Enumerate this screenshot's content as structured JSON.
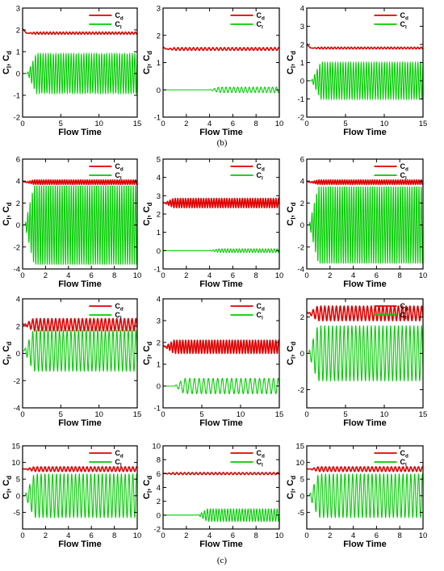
{
  "figure": {
    "caption_b": "(b)",
    "caption_c": "(c)",
    "colors": {
      "cd": "#e00000",
      "cl": "#00cc00"
    },
    "legend_cd_main": "C",
    "legend_cd_sub": "d",
    "legend_cl_main": "C",
    "legend_cl_sub": "l",
    "ylabel_main": "C",
    "ylabel_sub1": "l",
    "ylabel_mid": ", C",
    "ylabel_sub2": "d"
  },
  "chart_data": [
    {
      "type": "line",
      "xlabel": "Flow Time",
      "xlim": [
        0,
        15
      ],
      "ylim": [
        -2,
        3
      ],
      "xticks": [
        0,
        5,
        10,
        15
      ],
      "yticks": [
        -2,
        -1,
        0,
        1,
        2,
        3
      ],
      "series": [
        {
          "name": "Cd",
          "mean": 1.85,
          "amplitude": 0.05,
          "cycles": 35,
          "onset": 0.5
        },
        {
          "name": "Cl",
          "mean": 0.0,
          "amplitude": 0.9,
          "cycles": 45,
          "onset": 0.6
        }
      ]
    },
    {
      "type": "line",
      "xlabel": "Flow Time",
      "xlim": [
        0,
        10
      ],
      "ylim": [
        -1,
        3
      ],
      "xticks": [
        0,
        2,
        4,
        6,
        8,
        10
      ],
      "yticks": [
        -1,
        0,
        1,
        2,
        3
      ],
      "series": [
        {
          "name": "Cd",
          "mean": 1.5,
          "amplitude": 0.05,
          "cycles": 30,
          "onset": 0.2
        },
        {
          "name": "Cl",
          "mean": 0.0,
          "amplitude": 0.1,
          "cycles": 30,
          "onset": 4.0
        }
      ]
    },
    {
      "type": "line",
      "xlabel": "Flow Time",
      "xlim": [
        0,
        15
      ],
      "ylim": [
        -2,
        4
      ],
      "xticks": [
        0,
        5,
        10,
        15
      ],
      "yticks": [
        -2,
        -1,
        0,
        1,
        2,
        3,
        4
      ],
      "series": [
        {
          "name": "Cd",
          "mean": 1.8,
          "amplitude": 0.05,
          "cycles": 35,
          "onset": 0.5
        },
        {
          "name": "Cl",
          "mean": 0.0,
          "amplitude": 1.0,
          "cycles": 45,
          "onset": 0.6
        }
      ]
    },
    {
      "type": "line",
      "xlabel": "Flow Time",
      "xlim": [
        0,
        10
      ],
      "ylim": [
        -4,
        6
      ],
      "xticks": [
        0,
        2,
        4,
        6,
        8,
        10
      ],
      "yticks": [
        -4,
        -2,
        0,
        2,
        4,
        6
      ],
      "series": [
        {
          "name": "Cd",
          "mean": 3.9,
          "amplitude": 0.2,
          "cycles": 50,
          "onset": 0.2
        },
        {
          "name": "Cl",
          "mean": 0.0,
          "amplitude": 3.6,
          "cycles": 50,
          "onset": 0.2
        }
      ]
    },
    {
      "type": "line",
      "xlabel": "Flow Time",
      "xlim": [
        0,
        10
      ],
      "ylim": [
        -1,
        5
      ],
      "xticks": [
        0,
        2,
        4,
        6,
        8,
        10
      ],
      "yticks": [
        -1,
        0,
        1,
        2,
        3,
        4,
        5
      ],
      "series": [
        {
          "name": "Cd",
          "mean": 2.6,
          "amplitude": 0.25,
          "cycles": 45,
          "onset": 0.1
        },
        {
          "name": "Cl",
          "mean": 0.0,
          "amplitude": 0.1,
          "cycles": 40,
          "onset": 4.0
        }
      ]
    },
    {
      "type": "line",
      "xlabel": "Flow Time",
      "xlim": [
        0,
        10
      ],
      "ylim": [
        -4,
        6
      ],
      "xticks": [
        0,
        2,
        4,
        6,
        8,
        10
      ],
      "yticks": [
        -4,
        -2,
        0,
        2,
        4,
        6
      ],
      "series": [
        {
          "name": "Cd",
          "mean": 3.9,
          "amplitude": 0.2,
          "cycles": 50,
          "onset": 0.2
        },
        {
          "name": "Cl",
          "mean": 0.0,
          "amplitude": 3.5,
          "cycles": 50,
          "onset": 0.2
        }
      ]
    },
    {
      "type": "line",
      "xlabel": "Flow Time",
      "xlim": [
        0,
        15
      ],
      "ylim": [
        -4,
        4
      ],
      "xticks": [
        0,
        5,
        10,
        15
      ],
      "yticks": [
        -4,
        -2,
        0,
        2,
        4
      ],
      "series": [
        {
          "name": "Cd",
          "mean": 2.1,
          "amplitude": 0.45,
          "cycles": 30,
          "onset": 0.2
        },
        {
          "name": "Cl",
          "mean": 0.2,
          "amplitude": 1.5,
          "cycles": 30,
          "onset": 0.2
        }
      ]
    },
    {
      "type": "line",
      "xlabel": "Flow Time",
      "xlim": [
        0,
        15
      ],
      "ylim": [
        -1,
        4
      ],
      "xticks": [
        0,
        5,
        10,
        15
      ],
      "yticks": [
        -1,
        0,
        1,
        2,
        3,
        4
      ],
      "series": [
        {
          "name": "Cd",
          "mean": 1.8,
          "amplitude": 0.3,
          "cycles": 40,
          "onset": 0.2
        },
        {
          "name": "Cl",
          "mean": 0.0,
          "amplitude": 0.35,
          "cycles": 25,
          "onset": 1.5
        }
      ]
    },
    {
      "type": "line",
      "xlabel": "Flow Time",
      "xlim": [
        0,
        15
      ],
      "ylim": [
        -3,
        3
      ],
      "xticks": [
        0,
        5,
        10,
        15
      ],
      "yticks": [
        -2,
        0,
        2
      ],
      "series": [
        {
          "name": "Cd",
          "mean": 2.2,
          "amplitude": 0.4,
          "cycles": 30,
          "onset": 0.2
        },
        {
          "name": "Cl",
          "mean": 0.0,
          "amplitude": 1.5,
          "cycles": 30,
          "onset": 0.2
        }
      ]
    },
    {
      "type": "line",
      "xlabel": "Flow Time",
      "xlim": [
        0,
        10
      ],
      "ylim": [
        -10,
        15
      ],
      "xticks": [
        0,
        2,
        4,
        6,
        8,
        10
      ],
      "yticks": [
        -5,
        0,
        5,
        10,
        15
      ],
      "series": [
        {
          "name": "Cd",
          "mean": 8.0,
          "amplitude": 0.7,
          "cycles": 30,
          "onset": 0.2
        },
        {
          "name": "Cl",
          "mean": 0.0,
          "amplitude": 6.5,
          "cycles": 30,
          "onset": 0.2
        }
      ]
    },
    {
      "type": "line",
      "xlabel": "Flow Time",
      "xlim": [
        0,
        10
      ],
      "ylim": [
        -2,
        10
      ],
      "xticks": [
        0,
        2,
        4,
        6,
        8,
        10
      ],
      "yticks": [
        -2,
        0,
        2,
        4,
        6,
        8,
        10
      ],
      "series": [
        {
          "name": "Cd",
          "mean": 6.0,
          "amplitude": 0.15,
          "cycles": 30,
          "onset": 0.1
        },
        {
          "name": "Cl",
          "mean": 0.0,
          "amplitude": 0.9,
          "cycles": 40,
          "onset": 3.0
        }
      ]
    },
    {
      "type": "line",
      "xlabel": "Flow Time",
      "xlim": [
        0,
        10
      ],
      "ylim": [
        -10,
        15
      ],
      "xticks": [
        0,
        2,
        4,
        6,
        8,
        10
      ],
      "yticks": [
        -5,
        0,
        5,
        10,
        15
      ],
      "series": [
        {
          "name": "Cd",
          "mean": 8.0,
          "amplitude": 0.7,
          "cycles": 30,
          "onset": 0.2
        },
        {
          "name": "Cl",
          "mean": 0.0,
          "amplitude": 6.5,
          "cycles": 30,
          "onset": 0.2
        }
      ]
    }
  ]
}
